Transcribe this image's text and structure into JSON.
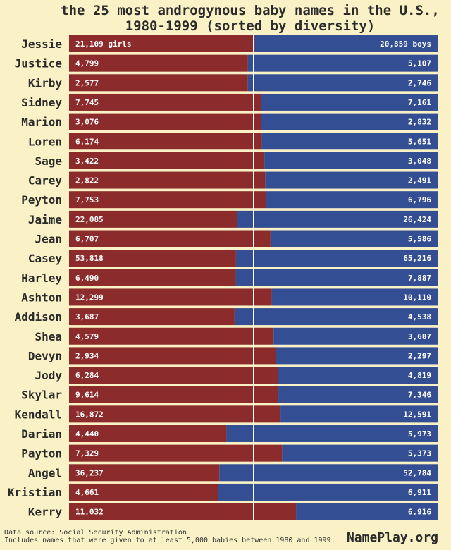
{
  "chart_data": {
    "type": "bar",
    "stacked": "percent",
    "orientation": "horizontal",
    "title_line1": "the 25 most androgynous baby names in the U.S.,",
    "title_line2": "1980-1999 (sorted by diversity)",
    "girls_suffix": " girls",
    "boys_suffix": " boys",
    "colors": {
      "girls": "#8b2b2b",
      "boys": "#344e93",
      "midline": "#ffffff"
    },
    "names": [
      "Jessie",
      "Justice",
      "Kirby",
      "Sidney",
      "Marion",
      "Loren",
      "Sage",
      "Carey",
      "Peyton",
      "Jaime",
      "Jean",
      "Casey",
      "Harley",
      "Ashton",
      "Addison",
      "Shea",
      "Devyn",
      "Jody",
      "Skylar",
      "Kendall",
      "Darian",
      "Payton",
      "Angel",
      "Kristian",
      "Kerry"
    ],
    "series": [
      {
        "name": "girls",
        "values": [
          21109,
          4799,
          2577,
          7745,
          3076,
          6174,
          3422,
          2822,
          7753,
          22085,
          6707,
          53818,
          6490,
          12299,
          3687,
          4579,
          2934,
          6284,
          9614,
          16872,
          4440,
          7329,
          36237,
          4661,
          11032
        ]
      },
      {
        "name": "boys",
        "values": [
          20859,
          5107,
          2746,
          7161,
          2832,
          5651,
          3048,
          2491,
          6796,
          26424,
          5586,
          65216,
          7887,
          10110,
          4538,
          3687,
          2297,
          4819,
          7346,
          12591,
          5973,
          5373,
          52784,
          6911,
          6916
        ]
      }
    ]
  },
  "footer": {
    "source": "Data source: Social Security Administration",
    "note": "Includes names that were given to at least 5,000 babies between 1980 and 1999.",
    "brand": "NamePlay.org"
  }
}
